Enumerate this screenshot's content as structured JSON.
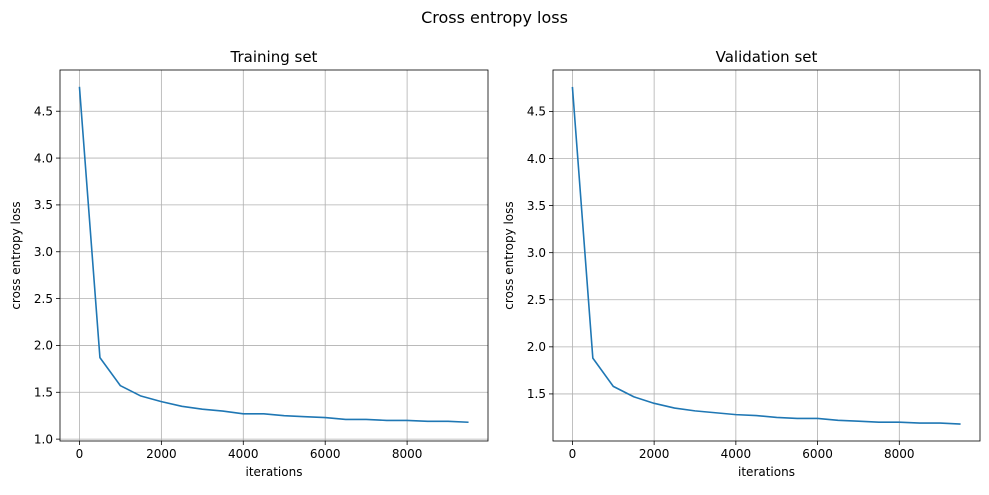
{
  "figure": {
    "title": "Cross entropy loss"
  },
  "chart_data": [
    {
      "type": "line",
      "title": "Training set",
      "xlabel": "iterations",
      "ylabel": "cross entropy loss",
      "xlim": [
        -475,
        9975
      ],
      "ylim": [
        0.98,
        4.94
      ],
      "xticks": [
        0,
        2000,
        4000,
        6000,
        8000
      ],
      "xtick_labels": [
        "0",
        "2000",
        "4000",
        "6000",
        "8000"
      ],
      "yticks": [
        1.0,
        1.5,
        2.0,
        2.5,
        3.0,
        3.5,
        4.0,
        4.5
      ],
      "ytick_labels": [
        "1.0",
        "1.5",
        "2.0",
        "2.5",
        "3.0",
        "3.5",
        "4.0",
        "4.5"
      ],
      "grid": true,
      "color": "#1f77b4",
      "series": [
        {
          "x": [
            0,
            500,
            1000,
            1500,
            2000,
            2500,
            3000,
            3500,
            4000,
            4500,
            5000,
            5500,
            6000,
            6500,
            7000,
            7500,
            8000,
            8500,
            9000,
            9500
          ],
          "y": [
            4.76,
            1.87,
            1.57,
            1.46,
            1.4,
            1.35,
            1.32,
            1.3,
            1.27,
            1.27,
            1.25,
            1.24,
            1.23,
            1.21,
            1.21,
            1.2,
            1.2,
            1.19,
            1.19,
            1.18
          ]
        }
      ]
    },
    {
      "type": "line",
      "title": "Validation set",
      "xlabel": "iterations",
      "ylabel": "cross entropy loss",
      "xlim": [
        -475,
        9975
      ],
      "ylim": [
        1.0,
        4.94
      ],
      "xticks": [
        0,
        2000,
        4000,
        6000,
        8000
      ],
      "xtick_labels": [
        "0",
        "2000",
        "4000",
        "6000",
        "8000"
      ],
      "yticks": [
        1.5,
        2.0,
        2.5,
        3.0,
        3.5,
        4.0,
        4.5
      ],
      "ytick_labels": [
        "1.5",
        "2.0",
        "2.5",
        "3.0",
        "3.5",
        "4.0",
        "4.5"
      ],
      "grid": true,
      "color": "#1f77b4",
      "series": [
        {
          "x": [
            0,
            500,
            1000,
            1500,
            2000,
            2500,
            3000,
            3500,
            4000,
            4500,
            5000,
            5500,
            6000,
            6500,
            7000,
            7500,
            8000,
            8500,
            9000,
            9500
          ],
          "y": [
            4.76,
            1.88,
            1.58,
            1.47,
            1.4,
            1.35,
            1.32,
            1.3,
            1.28,
            1.27,
            1.25,
            1.24,
            1.24,
            1.22,
            1.21,
            1.2,
            1.2,
            1.19,
            1.19,
            1.18
          ]
        }
      ]
    }
  ]
}
